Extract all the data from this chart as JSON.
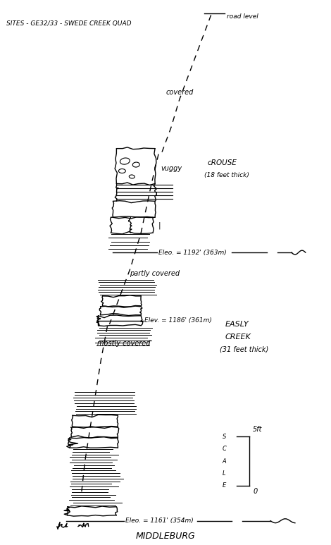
{
  "background_color": "#ffffff",
  "fig_width": 4.7,
  "fig_height": 7.73,
  "title": "SITES - GE32/33 - SWEDE CREEK QUAD",
  "road_level": "road level",
  "covered": "covered",
  "partly_covered": "partly covered",
  "mostly_covered": "mostly covered",
  "crouse": "cROUSE",
  "crouse_thick": "(18 feet thick)",
  "vuggy": "vuggy",
  "elev1_text": "Eleo. = 1192' (363m)",
  "elev2_text": "Elev. = 1186' (361m)",
  "elev3_text": "Eleo. = 1161' (354m)",
  "easly": "EASLY",
  "creek": "CREEK",
  "creek_thick": "(31 feet thick)",
  "middleburg": "MIDDLEBURG",
  "scale_5ft": "5ft",
  "scale_0": "0",
  "scale_letters": "S\nC\nA\nL\nE"
}
